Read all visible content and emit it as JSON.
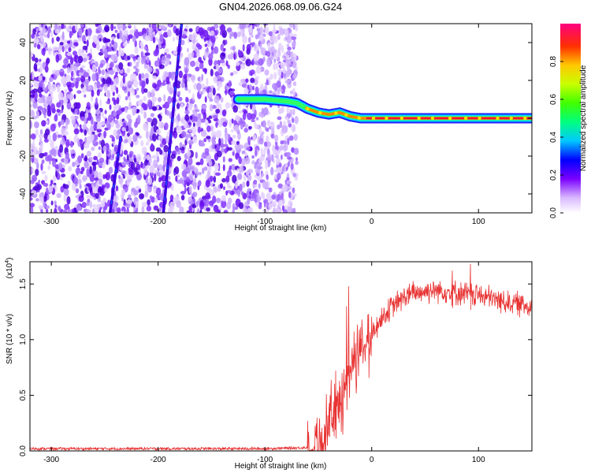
{
  "title": "GN04.2026.068.09.06.G24",
  "chart_data": [
    {
      "type": "heatmap",
      "xlabel": "Height of straight line (km)",
      "ylabel": "Frequency (Hz)",
      "xlim": [
        -320,
        150
      ],
      "ylim": [
        -50,
        50
      ],
      "xticks": [
        -300,
        -200,
        -100,
        0,
        100
      ],
      "yticks": [
        -40,
        -20,
        0,
        20,
        40
      ],
      "noise_region_x": [
        -320,
        -70
      ],
      "signal_track": {
        "x": [
          -125,
          -100,
          -80,
          -70,
          -60,
          -50,
          -40,
          -30,
          -20,
          -10,
          0,
          50,
          100,
          150
        ],
        "y": [
          10,
          10,
          9,
          8,
          5,
          3,
          2,
          3,
          1,
          0,
          0,
          0,
          0,
          0
        ]
      },
      "streaks": [
        {
          "x": [
            -178,
            -195
          ],
          "y": [
            50,
            -50
          ]
        },
        {
          "x": [
            -235,
            -245
          ],
          "y": [
            -10,
            -50
          ]
        }
      ],
      "colorbar": {
        "label": "Normalized spectral amplitude",
        "range": [
          0.0,
          1.0
        ],
        "ticks": [
          0.0,
          0.2,
          0.4,
          0.6,
          0.8
        ]
      }
    },
    {
      "type": "line",
      "xlabel": "Height of straight line (km)",
      "ylabel": "SNR (10 * v/v)",
      "exponent_label": "(x10",
      "exponent_power": "4",
      "exponent_close": ")",
      "xlim": [
        -320,
        150
      ],
      "ylim": [
        0.0,
        1.7
      ],
      "xticks": [
        -300,
        -200,
        -100,
        0,
        100
      ],
      "yticks": [
        "0.0",
        "0.5",
        "1.0",
        "1.5"
      ],
      "color": "#e83232",
      "series_knots": {
        "x": [
          -320,
          -100,
          -60,
          -45,
          -40,
          -35,
          -30,
          -25,
          -20,
          -10,
          0,
          10,
          20,
          30,
          40,
          60,
          80,
          100,
          120,
          150
        ],
        "y": [
          0.02,
          0.02,
          0.03,
          0.08,
          0.25,
          0.35,
          0.45,
          0.55,
          0.75,
          0.95,
          1.05,
          1.2,
          1.3,
          1.38,
          1.42,
          1.45,
          1.42,
          1.4,
          1.35,
          1.3
        ]
      },
      "spikes": [
        {
          "x": -22,
          "y": 1.48
        },
        {
          "x": -24,
          "y": 1.3
        },
        {
          "x": 92,
          "y": 1.68
        },
        {
          "x": 75,
          "y": 1.62
        }
      ]
    }
  ]
}
